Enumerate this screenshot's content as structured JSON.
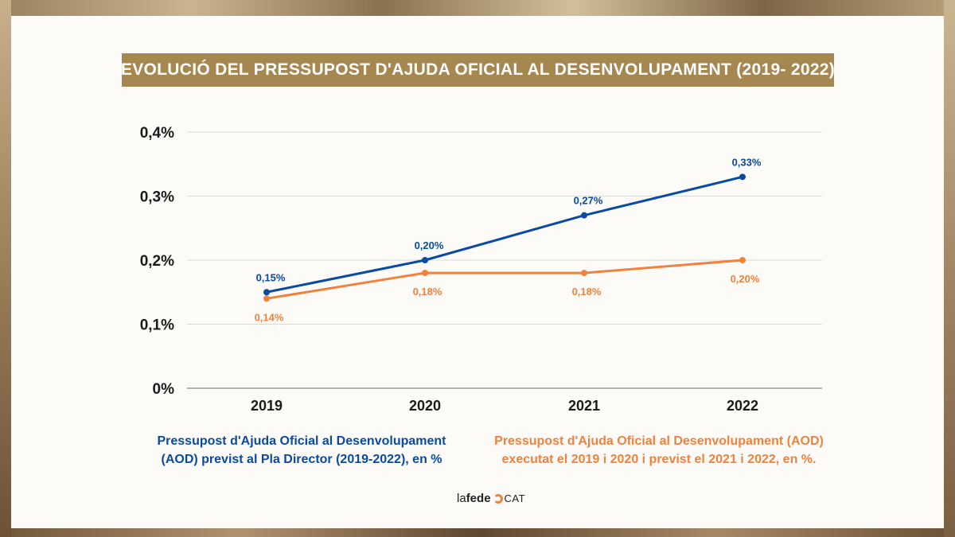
{
  "page": {
    "title": "EVOLUCIÓ  DEL PRESSUPOST D'AJUDA OFICIAL AL DESENVOLUPAMENT (2019- 2022)"
  },
  "colors": {
    "blue": "#0a4aa0",
    "orange": "#f0823e",
    "title_bg": "#a5874f"
  },
  "chart_data": {
    "type": "line",
    "title": "EVOLUCIÓ  DEL PRESSUPOST D'AJUDA OFICIAL AL DESENVOLUPAMENT (2019- 2022)",
    "categories": [
      "2019",
      "2020",
      "2021",
      "2022"
    ],
    "ylim": [
      0,
      0.4
    ],
    "yticks": [
      0,
      0.1,
      0.2,
      0.3,
      0.4
    ],
    "ytick_labels": [
      "0%",
      "0,1%",
      "0,2%",
      "0,3%",
      "0,4%"
    ],
    "grid": true,
    "series": [
      {
        "name": "Pressupost d'Ajuda Oficial al Desenvolupament (AOD) previst al Pla Director (2019-2022), en %",
        "color": "#0a4aa0",
        "values": [
          0.15,
          0.2,
          0.27,
          0.33
        ],
        "labels": [
          "0,15%",
          "0,20%",
          "0,27%",
          "0,33%"
        ],
        "label_position": "above"
      },
      {
        "name": "Pressupost d'Ajuda Oficial al Desenvolupament (AOD) executat el 2019 i 2020 i previst el 2021 i 2022, en %.",
        "color": "#f0823e",
        "values": [
          0.14,
          0.18,
          0.18,
          0.2
        ],
        "labels": [
          "0,14%",
          "0,18%",
          "0,18%",
          "0,20%"
        ],
        "label_position": "below"
      }
    ]
  },
  "legend": {
    "blue_line1": "Pressupost d'Ajuda Oficial al Desenvolupament",
    "blue_line2": "(AOD) previst al Pla Director (2019-2022), en %",
    "orange_line1": "Pressupost d'Ajuda Oficial al Desenvolupament (AOD)",
    "orange_line2": "executat el 2019 i 2020 i previst el 2021 i 2022, en %."
  },
  "logo": {
    "la": "la",
    "fede": "fede",
    "cat": "CAT"
  }
}
